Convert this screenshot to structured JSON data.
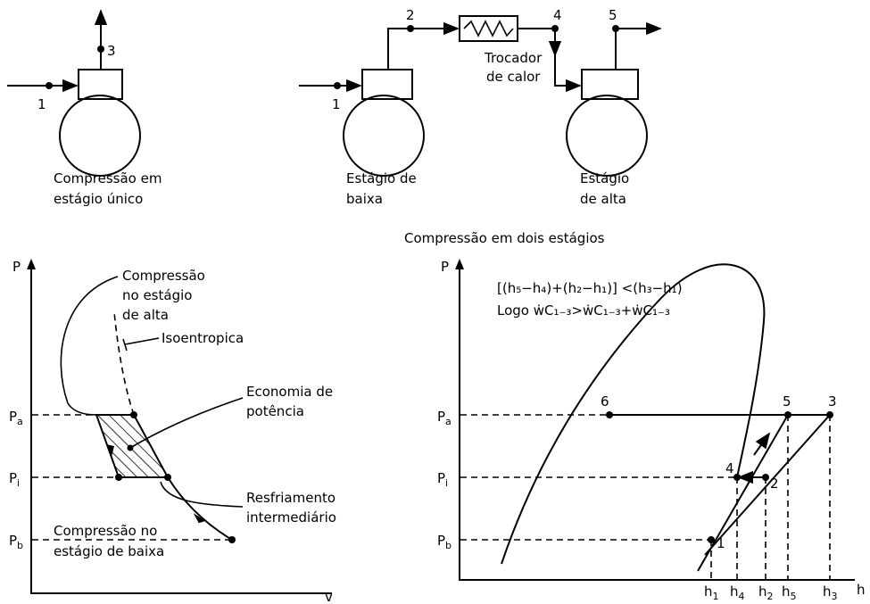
{
  "single_stage": {
    "points": [
      "1",
      "3"
    ],
    "caption": [
      "Compressão em",
      "estágio único"
    ]
  },
  "two_stage": {
    "points": [
      "1",
      "2",
      "4",
      "5"
    ],
    "heat_exchanger": [
      "Trocador",
      "de calor"
    ],
    "low_stage": [
      "Estágio de",
      "baixa"
    ],
    "high_stage": [
      "Estágio",
      "de alta"
    ],
    "caption": "Compressão em dois estágios"
  },
  "pv_diagram": {
    "y_axis": "P",
    "x_axis": "v",
    "pressures": [
      {
        "main": "P",
        "sub": "a"
      },
      {
        "main": "P",
        "sub": "i"
      },
      {
        "main": "P",
        "sub": "b"
      }
    ],
    "high_stage_note": [
      "Compressão",
      "no estágio",
      "de alta"
    ],
    "isentropic_note": "Isoentropica",
    "saving_note": [
      "Economia de",
      "potência"
    ],
    "intercooling_note": [
      "Resfriamento",
      "intermediário"
    ],
    "low_stage_note": [
      "Compressão no",
      "estágio de baixa"
    ]
  },
  "ph_diagram": {
    "y_axis": "P",
    "x_axis": "h",
    "pressures": [
      {
        "main": "P",
        "sub": "a"
      },
      {
        "main": "P",
        "sub": "i"
      },
      {
        "main": "P",
        "sub": "b"
      }
    ],
    "formula": [
      "[(h₅−h₄)+(h₂−h₁)] <(h₃−h₁)",
      "Logo ẇC₁₋₃>ẇC₁₋₃+ẇC₁₋₃"
    ],
    "points": [
      "1",
      "2",
      "3",
      "4",
      "5",
      "6"
    ],
    "enthalpies": [
      {
        "main": "h",
        "sub": "1"
      },
      {
        "main": "h",
        "sub": "4"
      },
      {
        "main": "h",
        "sub": "2"
      },
      {
        "main": "h",
        "sub": "5"
      },
      {
        "main": "h",
        "sub": "3"
      }
    ]
  }
}
